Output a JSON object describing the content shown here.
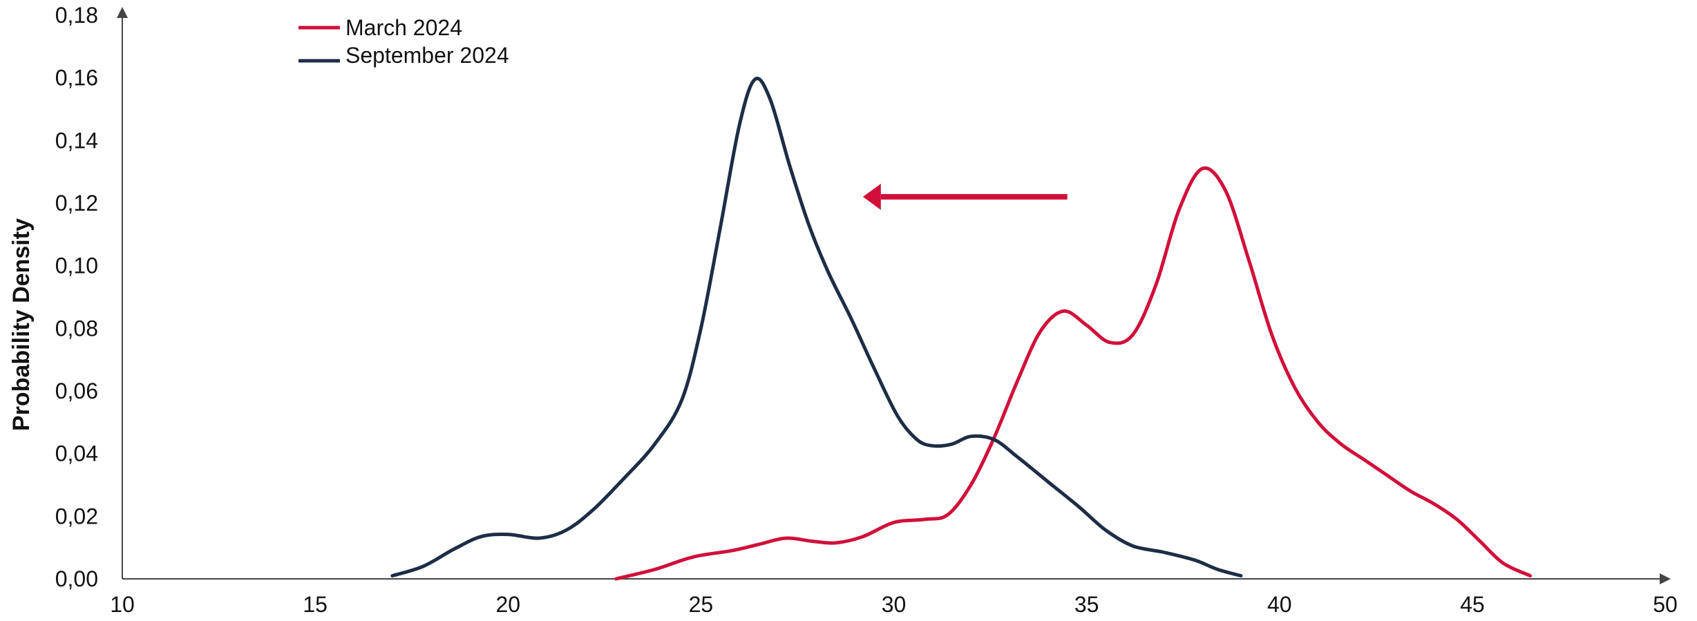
{
  "chart_data": {
    "type": "line",
    "title": "",
    "xlabel": "",
    "ylabel": "Probability Density",
    "xlim": [
      10,
      50
    ],
    "ylim": [
      0,
      0.18
    ],
    "x_ticks": [
      "10",
      "15",
      "20",
      "25",
      "30",
      "35",
      "40",
      "45",
      "50"
    ],
    "y_ticks": [
      "0,00",
      "0,02",
      "0,04",
      "0,06",
      "0,08",
      "0,10",
      "0,12",
      "0,14",
      "0,16",
      "0,18"
    ],
    "grid": false,
    "legend_position": "top-left",
    "series": [
      {
        "name": "March 2024",
        "color": "#d0103a",
        "points": [
          [
            22.8,
            0.0
          ],
          [
            23.8,
            0.003
          ],
          [
            24.8,
            0.007
          ],
          [
            25.8,
            0.009
          ],
          [
            26.5,
            0.011
          ],
          [
            27.2,
            0.013
          ],
          [
            27.9,
            0.012
          ],
          [
            28.5,
            0.0115
          ],
          [
            29.2,
            0.0135
          ],
          [
            30.0,
            0.018
          ],
          [
            30.8,
            0.019
          ],
          [
            31.4,
            0.0205
          ],
          [
            32.0,
            0.03
          ],
          [
            32.6,
            0.045
          ],
          [
            33.2,
            0.063
          ],
          [
            33.8,
            0.079
          ],
          [
            34.4,
            0.0855
          ],
          [
            35.0,
            0.081
          ],
          [
            35.6,
            0.0755
          ],
          [
            36.2,
            0.078
          ],
          [
            36.8,
            0.094
          ],
          [
            37.4,
            0.118
          ],
          [
            38.0,
            0.131
          ],
          [
            38.6,
            0.124
          ],
          [
            39.2,
            0.102
          ],
          [
            39.8,
            0.078
          ],
          [
            40.4,
            0.061
          ],
          [
            41.0,
            0.05
          ],
          [
            41.6,
            0.043
          ],
          [
            42.2,
            0.038
          ],
          [
            42.8,
            0.033
          ],
          [
            43.4,
            0.028
          ],
          [
            44.0,
            0.024
          ],
          [
            44.6,
            0.019
          ],
          [
            45.2,
            0.012
          ],
          [
            45.8,
            0.005
          ],
          [
            46.5,
            0.001
          ]
        ]
      },
      {
        "name": "September 2024",
        "color": "#1c2e45",
        "points": [
          [
            17.0,
            0.001
          ],
          [
            17.8,
            0.004
          ],
          [
            18.6,
            0.0095
          ],
          [
            19.3,
            0.0135
          ],
          [
            20.0,
            0.0142
          ],
          [
            20.8,
            0.013
          ],
          [
            21.5,
            0.0155
          ],
          [
            22.2,
            0.022
          ],
          [
            23.0,
            0.032
          ],
          [
            23.8,
            0.043
          ],
          [
            24.5,
            0.057
          ],
          [
            25.0,
            0.08
          ],
          [
            25.5,
            0.112
          ],
          [
            26.0,
            0.145
          ],
          [
            26.4,
            0.1595
          ],
          [
            26.8,
            0.153
          ],
          [
            27.3,
            0.132
          ],
          [
            27.8,
            0.113
          ],
          [
            28.3,
            0.098
          ],
          [
            28.9,
            0.083
          ],
          [
            29.5,
            0.067
          ],
          [
            30.1,
            0.052
          ],
          [
            30.6,
            0.0445
          ],
          [
            31.0,
            0.0425
          ],
          [
            31.5,
            0.043
          ],
          [
            32.0,
            0.0455
          ],
          [
            32.6,
            0.0445
          ],
          [
            33.2,
            0.039
          ],
          [
            34.0,
            0.031
          ],
          [
            34.8,
            0.023
          ],
          [
            35.5,
            0.0155
          ],
          [
            36.2,
            0.0105
          ],
          [
            37.0,
            0.0085
          ],
          [
            37.8,
            0.006
          ],
          [
            38.4,
            0.003
          ],
          [
            39.0,
            0.001
          ]
        ]
      }
    ],
    "annotations": [
      {
        "type": "arrow",
        "direction": "left",
        "from": [
          34.5,
          0.122
        ],
        "to": [
          29.2,
          0.122
        ],
        "color": "#d0103a"
      }
    ]
  }
}
